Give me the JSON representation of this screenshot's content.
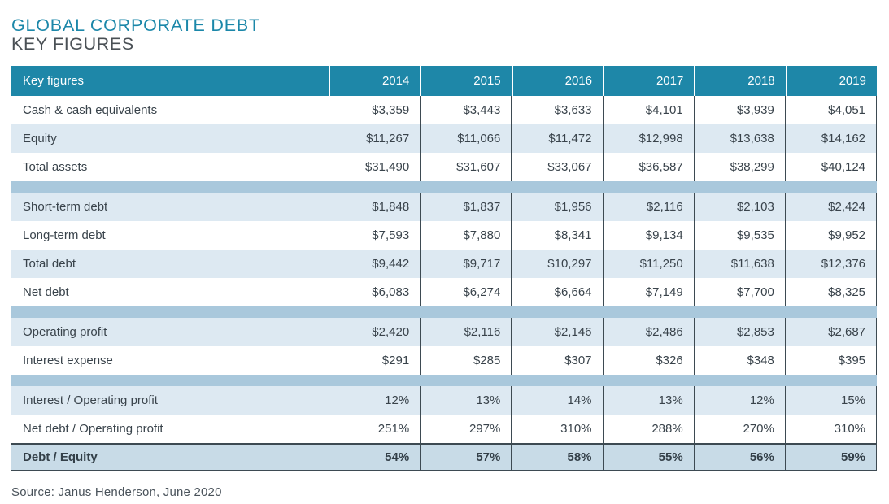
{
  "page": {
    "title": "GLOBAL CORPORATE DEBT",
    "subtitle": "KEY FIGURES",
    "source": "Source: Janus Henderson, June 2020"
  },
  "colors": {
    "header_bg": "#1e87a8",
    "title_teal": "#1b87a9",
    "shade_row_bg": "#dde9f2",
    "separator_band_bg": "#a9c8dc",
    "total_row_bg": "#c8dbe7",
    "divider": "#3d4a52",
    "text_dark": "#39434b"
  },
  "chart_data": {
    "type": "table",
    "title": "Global Corporate Debt — Key Figures",
    "columns": [
      "Key figures",
      "2014",
      "2015",
      "2016",
      "2017",
      "2018",
      "2019"
    ],
    "sections": [
      {
        "rows": [
          {
            "label": "Cash & cash equivalents",
            "values": [
              "$3,359",
              "$3,443",
              "$3,633",
              "$4,101",
              "$3,939",
              "$4,051"
            ]
          },
          {
            "label": "Equity",
            "values": [
              "$11,267",
              "$11,066",
              "$11,472",
              "$12,998",
              "$13,638",
              "$14,162"
            ]
          },
          {
            "label": "Total assets",
            "values": [
              "$31,490",
              "$31,607",
              "$33,067",
              "$36,587",
              "$38,299",
              "$40,124"
            ]
          }
        ]
      },
      {
        "rows": [
          {
            "label": "Short-term debt",
            "values": [
              "$1,848",
              "$1,837",
              "$1,956",
              "$2,116",
              "$2,103",
              "$2,424"
            ]
          },
          {
            "label": "Long-term debt",
            "values": [
              "$7,593",
              "$7,880",
              "$8,341",
              "$9,134",
              "$9,535",
              "$9,952"
            ]
          },
          {
            "label": "Total debt",
            "values": [
              "$9,442",
              "$9,717",
              "$10,297",
              "$11,250",
              "$11,638",
              "$12,376"
            ]
          },
          {
            "label": "Net debt",
            "values": [
              "$6,083",
              "$6,274",
              "$6,664",
              "$7,149",
              "$7,700",
              "$8,325"
            ]
          }
        ]
      },
      {
        "rows": [
          {
            "label": "Operating profit",
            "values": [
              "$2,420",
              "$2,116",
              "$2,146",
              "$2,486",
              "$2,853",
              "$2,687"
            ]
          },
          {
            "label": "Interest expense",
            "values": [
              "$291",
              "$285",
              "$307",
              "$326",
              "$348",
              "$395"
            ]
          }
        ]
      },
      {
        "rows": [
          {
            "label": "Interest / Operating profit",
            "values": [
              "12%",
              "13%",
              "14%",
              "13%",
              "12%",
              "15%"
            ]
          },
          {
            "label": "Net debt / Operating profit",
            "values": [
              "251%",
              "297%",
              "310%",
              "288%",
              "270%",
              "310%"
            ]
          }
        ]
      }
    ],
    "total_row": {
      "label": "Debt / Equity",
      "values": [
        "54%",
        "57%",
        "58%",
        "55%",
        "56%",
        "59%"
      ]
    }
  }
}
